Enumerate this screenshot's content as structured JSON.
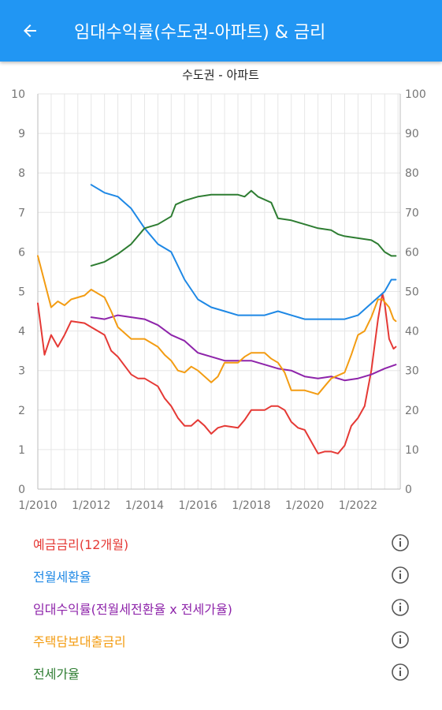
{
  "appbar": {
    "title": "임대수익률(수도권-아파트) & 금리",
    "back_icon": "arrow-left-icon"
  },
  "chart_data": {
    "type": "line",
    "title": "수도권 - 아파트",
    "x_ticks": [
      "1/2010",
      "1/2012",
      "1/2014",
      "1/2016",
      "1/2018",
      "1/2020",
      "1/2022"
    ],
    "xlim": [
      "2010-01",
      "2023-08"
    ],
    "y_left": {
      "ylim": [
        0,
        10
      ],
      "ticks": [
        "0",
        "1",
        "2",
        "3",
        "4",
        "5",
        "6",
        "7",
        "8",
        "9",
        "10"
      ]
    },
    "y_right": {
      "ylim": [
        0,
        100
      ],
      "ticks": [
        "0",
        "10",
        "20",
        "30",
        "40",
        "50",
        "60",
        "70",
        "80",
        "90",
        "100"
      ]
    },
    "grid": true,
    "series": [
      {
        "name": "예금금리(12개월)",
        "axis": "left",
        "color": "#e53935",
        "points": [
          [
            "2010-01",
            4.7
          ],
          [
            "2010-04",
            3.4
          ],
          [
            "2010-07",
            3.9
          ],
          [
            "2010-10",
            3.6
          ],
          [
            "2011-01",
            3.9
          ],
          [
            "2011-04",
            4.25
          ],
          [
            "2011-10",
            4.2
          ],
          [
            "2012-01",
            4.1
          ],
          [
            "2012-07",
            3.9
          ],
          [
            "2012-10",
            3.5
          ],
          [
            "2013-01",
            3.35
          ],
          [
            "2013-07",
            2.9
          ],
          [
            "2013-10",
            2.8
          ],
          [
            "2014-01",
            2.8
          ],
          [
            "2014-07",
            2.6
          ],
          [
            "2014-10",
            2.3
          ],
          [
            "2015-01",
            2.1
          ],
          [
            "2015-04",
            1.8
          ],
          [
            "2015-07",
            1.6
          ],
          [
            "2015-10",
            1.6
          ],
          [
            "2016-01",
            1.75
          ],
          [
            "2016-04",
            1.6
          ],
          [
            "2016-07",
            1.4
          ],
          [
            "2016-10",
            1.55
          ],
          [
            "2017-01",
            1.6
          ],
          [
            "2017-07",
            1.55
          ],
          [
            "2017-10",
            1.75
          ],
          [
            "2018-01",
            2.0
          ],
          [
            "2018-07",
            2.0
          ],
          [
            "2018-10",
            2.1
          ],
          [
            "2019-01",
            2.1
          ],
          [
            "2019-04",
            2.0
          ],
          [
            "2019-07",
            1.7
          ],
          [
            "2019-10",
            1.55
          ],
          [
            "2020-01",
            1.5
          ],
          [
            "2020-04",
            1.2
          ],
          [
            "2020-07",
            0.9
          ],
          [
            "2020-10",
            0.95
          ],
          [
            "2021-01",
            0.95
          ],
          [
            "2021-04",
            0.9
          ],
          [
            "2021-07",
            1.1
          ],
          [
            "2021-10",
            1.6
          ],
          [
            "2022-01",
            1.8
          ],
          [
            "2022-04",
            2.1
          ],
          [
            "2022-07",
            3.0
          ],
          [
            "2022-10",
            4.3
          ],
          [
            "2022-12",
            4.95
          ],
          [
            "2023-01",
            4.7
          ],
          [
            "2023-03",
            3.8
          ],
          [
            "2023-05",
            3.55
          ],
          [
            "2023-06",
            3.6
          ]
        ]
      },
      {
        "name": "전월세전환율",
        "axis": "right",
        "color": "#1e88e5",
        "points": [
          [
            "2012-01",
            77
          ],
          [
            "2012-07",
            75
          ],
          [
            "2013-01",
            74
          ],
          [
            "2013-07",
            71
          ],
          [
            "2014-01",
            66
          ],
          [
            "2014-07",
            62
          ],
          [
            "2015-01",
            60
          ],
          [
            "2015-07",
            53
          ],
          [
            "2016-01",
            48
          ],
          [
            "2016-07",
            46
          ],
          [
            "2017-01",
            45
          ],
          [
            "2017-07",
            44
          ],
          [
            "2018-01",
            44
          ],
          [
            "2018-07",
            44
          ],
          [
            "2019-01",
            45
          ],
          [
            "2019-07",
            44
          ],
          [
            "2020-01",
            43
          ],
          [
            "2020-07",
            43
          ],
          [
            "2021-01",
            43
          ],
          [
            "2021-07",
            43
          ],
          [
            "2022-01",
            44
          ],
          [
            "2022-07",
            47
          ],
          [
            "2023-01",
            50
          ],
          [
            "2023-04",
            53
          ],
          [
            "2023-06",
            53
          ]
        ]
      },
      {
        "name": "임대수익률(전월세전환율 x 전세가율)",
        "axis": "left",
        "color": "#8e24aa",
        "points": [
          [
            "2012-01",
            4.35
          ],
          [
            "2012-07",
            4.3
          ],
          [
            "2013-01",
            4.4
          ],
          [
            "2013-07",
            4.35
          ],
          [
            "2014-01",
            4.3
          ],
          [
            "2014-07",
            4.15
          ],
          [
            "2015-01",
            3.9
          ],
          [
            "2015-07",
            3.75
          ],
          [
            "2016-01",
            3.45
          ],
          [
            "2016-07",
            3.35
          ],
          [
            "2017-01",
            3.25
          ],
          [
            "2017-07",
            3.25
          ],
          [
            "2018-01",
            3.25
          ],
          [
            "2018-07",
            3.15
          ],
          [
            "2019-01",
            3.05
          ],
          [
            "2019-07",
            3.0
          ],
          [
            "2020-01",
            2.85
          ],
          [
            "2020-07",
            2.8
          ],
          [
            "2021-01",
            2.85
          ],
          [
            "2021-07",
            2.75
          ],
          [
            "2022-01",
            2.8
          ],
          [
            "2022-07",
            2.9
          ],
          [
            "2023-01",
            3.05
          ],
          [
            "2023-06",
            3.15
          ]
        ]
      },
      {
        "name": "주택담보대출금리",
        "axis": "left",
        "color": "#f39c12",
        "points": [
          [
            "2010-01",
            5.9
          ],
          [
            "2010-07",
            4.6
          ],
          [
            "2010-10",
            4.75
          ],
          [
            "2011-01",
            4.65
          ],
          [
            "2011-04",
            4.8
          ],
          [
            "2011-07",
            4.85
          ],
          [
            "2011-10",
            4.9
          ],
          [
            "2012-01",
            5.05
          ],
          [
            "2012-07",
            4.85
          ],
          [
            "2012-10",
            4.5
          ],
          [
            "2013-01",
            4.1
          ],
          [
            "2013-07",
            3.8
          ],
          [
            "2014-01",
            3.8
          ],
          [
            "2014-07",
            3.6
          ],
          [
            "2014-10",
            3.4
          ],
          [
            "2015-01",
            3.25
          ],
          [
            "2015-04",
            3.0
          ],
          [
            "2015-07",
            2.95
          ],
          [
            "2015-10",
            3.1
          ],
          [
            "2016-01",
            3.0
          ],
          [
            "2016-07",
            2.7
          ],
          [
            "2016-10",
            2.85
          ],
          [
            "2017-01",
            3.2
          ],
          [
            "2017-07",
            3.2
          ],
          [
            "2017-10",
            3.35
          ],
          [
            "2018-01",
            3.45
          ],
          [
            "2018-07",
            3.45
          ],
          [
            "2018-10",
            3.3
          ],
          [
            "2019-01",
            3.2
          ],
          [
            "2019-04",
            2.95
          ],
          [
            "2019-07",
            2.5
          ],
          [
            "2019-10",
            2.5
          ],
          [
            "2020-01",
            2.5
          ],
          [
            "2020-07",
            2.4
          ],
          [
            "2020-10",
            2.6
          ],
          [
            "2021-01",
            2.8
          ],
          [
            "2021-07",
            2.95
          ],
          [
            "2021-10",
            3.4
          ],
          [
            "2022-01",
            3.9
          ],
          [
            "2022-04",
            4.0
          ],
          [
            "2022-07",
            4.35
          ],
          [
            "2022-10",
            4.8
          ],
          [
            "2022-12",
            4.8
          ],
          [
            "2023-03",
            4.6
          ],
          [
            "2023-05",
            4.3
          ],
          [
            "2023-06",
            4.25
          ]
        ]
      },
      {
        "name": "전세가율",
        "axis": "right",
        "color": "#2e7d32",
        "points": [
          [
            "2012-01",
            56.5
          ],
          [
            "2012-07",
            57.5
          ],
          [
            "2013-01",
            59.5
          ],
          [
            "2013-07",
            62
          ],
          [
            "2014-01",
            66
          ],
          [
            "2014-07",
            67
          ],
          [
            "2015-01",
            69
          ],
          [
            "2015-03",
            72
          ],
          [
            "2015-07",
            73
          ],
          [
            "2016-01",
            74
          ],
          [
            "2016-07",
            74.5
          ],
          [
            "2017-01",
            74.5
          ],
          [
            "2017-07",
            74.5
          ],
          [
            "2017-10",
            74
          ],
          [
            "2018-01",
            75.5
          ],
          [
            "2018-04",
            74
          ],
          [
            "2018-10",
            72.5
          ],
          [
            "2019-01",
            68.5
          ],
          [
            "2019-07",
            68
          ],
          [
            "2020-01",
            67
          ],
          [
            "2020-07",
            66
          ],
          [
            "2021-01",
            65.5
          ],
          [
            "2021-04",
            64.5
          ],
          [
            "2021-07",
            64
          ],
          [
            "2022-01",
            63.5
          ],
          [
            "2022-07",
            63
          ],
          [
            "2022-10",
            62
          ],
          [
            "2023-01",
            60
          ],
          [
            "2023-04",
            59
          ],
          [
            "2023-06",
            59
          ]
        ]
      }
    ]
  },
  "legend": [
    {
      "label": "예금금리(12개월)",
      "color": "#e53935",
      "icon": "info-icon"
    },
    {
      "label": "전월세환율",
      "color": "#1e88e5",
      "icon": "info-icon"
    },
    {
      "label": "임대수익률(전월세전환율 x 전세가율)",
      "color": "#8e24aa",
      "icon": "info-icon"
    },
    {
      "label": "주택담보대출금리",
      "color": "#f39c12",
      "icon": "info-icon"
    },
    {
      "label": "전세가율",
      "color": "#2e7d32",
      "icon": "info-icon"
    }
  ]
}
